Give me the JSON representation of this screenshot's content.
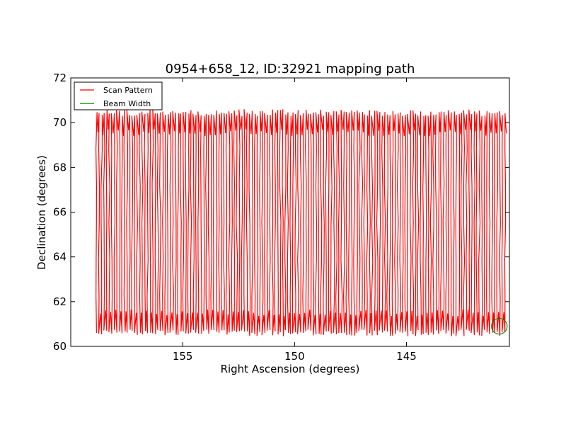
{
  "chart_data": {
    "type": "line",
    "title": "0954+658_12, ID:32921 mapping path",
    "xlabel": "Right Ascension (degrees)",
    "ylabel": "Declination (degrees)",
    "xlim": [
      160.0,
      140.4
    ],
    "ylim": [
      60,
      72
    ],
    "x_inverted": true,
    "xticks": [
      155,
      150,
      145
    ],
    "xtick_labels": [
      "155",
      "150",
      "145"
    ],
    "yticks": [
      60,
      62,
      64,
      66,
      68,
      70,
      72
    ],
    "ytick_labels": [
      "60",
      "62",
      "64",
      "66",
      "68",
      "70",
      "72"
    ],
    "grid": false,
    "legend": {
      "placement": "upper-left",
      "entries": [
        "Scan Pattern",
        "Beam Width"
      ]
    },
    "series": [
      {
        "name": "Scan Pattern",
        "color": "#ff0000",
        "pattern": "vertical raster sweeps",
        "ra_start": 158.85,
        "ra_end": 140.6,
        "sweep_count": 160,
        "dec_min": 61.0,
        "dec_max": 70.2
      },
      {
        "name": "Beam Width",
        "color": "#008000",
        "shape": "circle",
        "center": [
          140.85,
          60.9
        ],
        "radius_deg": 0.35
      }
    ]
  }
}
